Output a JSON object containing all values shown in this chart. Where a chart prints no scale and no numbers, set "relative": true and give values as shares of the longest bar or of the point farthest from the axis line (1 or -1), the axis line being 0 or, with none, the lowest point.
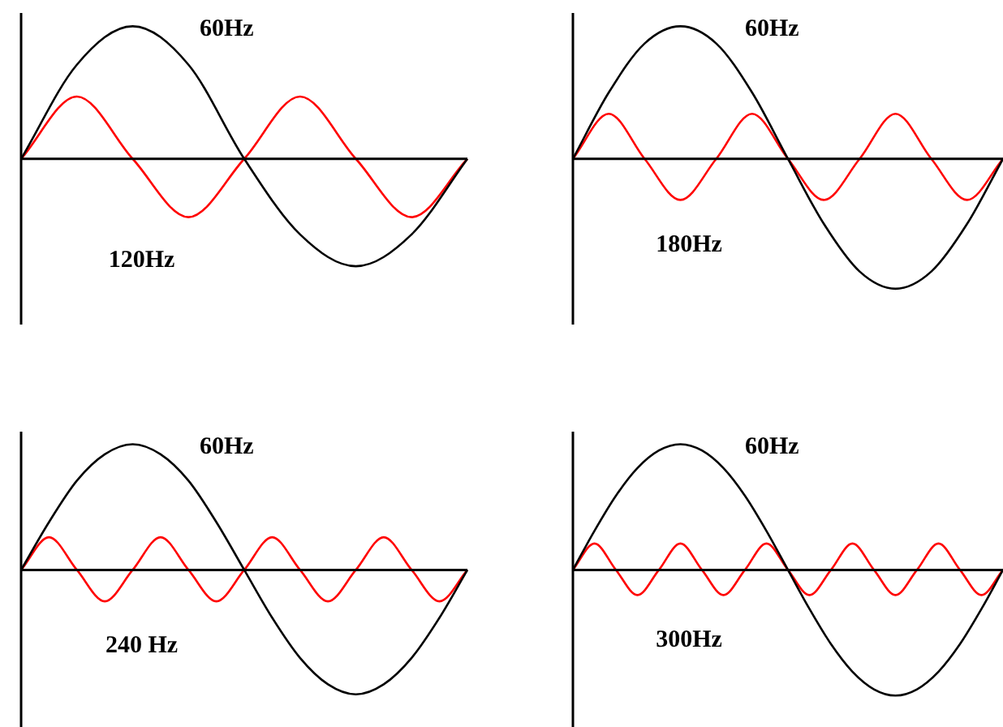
{
  "chart_data": [
    {
      "type": "line",
      "relative": true,
      "legend": false,
      "marker": "none",
      "categories": [
        null,
        null,
        null,
        null,
        null,
        null,
        null,
        null,
        null
      ],
      "series": [
        {
          "name": "60Hz",
          "color": "#000000",
          "values": [
            0,
            0.71,
            1,
            0.71,
            0,
            -0.57,
            -0.81,
            -0.57,
            0
          ]
        },
        {
          "name": "120Hz",
          "color": "#ff0000",
          "values": [
            0,
            0.47,
            0,
            -0.44,
            0,
            0.47,
            0,
            -0.44,
            0
          ]
        }
      ]
    },
    {
      "type": "line",
      "relative": true,
      "legend": false,
      "marker": "none",
      "categories": [
        null,
        null,
        null,
        null,
        null,
        null,
        null,
        null,
        null,
        null,
        null,
        null,
        null
      ],
      "series": [
        {
          "name": "60Hz",
          "color": "#000000",
          "values": [
            0,
            0.5,
            0.87,
            1,
            0.87,
            0.5,
            0,
            -0.49,
            -0.85,
            -0.98,
            -0.85,
            -0.49,
            0
          ]
        },
        {
          "name": "180Hz",
          "color": "#ff0000",
          "values": [
            0,
            0.34,
            0,
            -0.31,
            0,
            0.34,
            0,
            -0.31,
            0,
            0.34,
            0,
            -0.31,
            0
          ]
        }
      ]
    },
    {
      "type": "line",
      "relative": true,
      "legend": false,
      "marker": "none",
      "categories": [
        null,
        null,
        null,
        null,
        null,
        null,
        null,
        null,
        null,
        null,
        null,
        null,
        null,
        null,
        null,
        null,
        null
      ],
      "series": [
        {
          "name": "60Hz",
          "color": "#000000",
          "values": [
            0,
            0.38,
            0.71,
            0.92,
            1,
            0.92,
            0.71,
            0.38,
            0,
            -0.38,
            -0.7,
            -0.91,
            -0.99,
            -0.91,
            -0.7,
            -0.38,
            0
          ]
        },
        {
          "name": "240 Hz",
          "color": "#ff0000",
          "values": [
            0,
            0.26,
            0,
            -0.25,
            0,
            0.26,
            0,
            -0.25,
            0,
            0.26,
            0,
            -0.25,
            0,
            0.26,
            0,
            -0.25,
            0
          ]
        }
      ]
    },
    {
      "type": "line",
      "relative": true,
      "legend": false,
      "marker": "none",
      "categories": [
        null,
        null,
        null,
        null,
        null,
        null,
        null,
        null,
        null,
        null,
        null,
        null,
        null,
        null,
        null,
        null,
        null,
        null,
        null,
        null,
        null
      ],
      "series": [
        {
          "name": "60Hz",
          "color": "#000000",
          "values": [
            0,
            0.31,
            0.59,
            0.81,
            0.95,
            1,
            0.95,
            0.81,
            0.59,
            0.31,
            0,
            -0.31,
            -0.59,
            -0.81,
            -0.95,
            -1,
            -0.95,
            -0.81,
            -0.59,
            -0.31,
            0
          ]
        },
        {
          "name": "300Hz",
          "color": "#ff0000",
          "values": [
            0,
            0.21,
            0,
            -0.2,
            0,
            0.21,
            0,
            -0.2,
            0,
            0.21,
            0,
            -0.2,
            0,
            0.21,
            0,
            -0.2,
            0,
            0.21,
            0,
            -0.2,
            0
          ]
        }
      ]
    }
  ]
}
